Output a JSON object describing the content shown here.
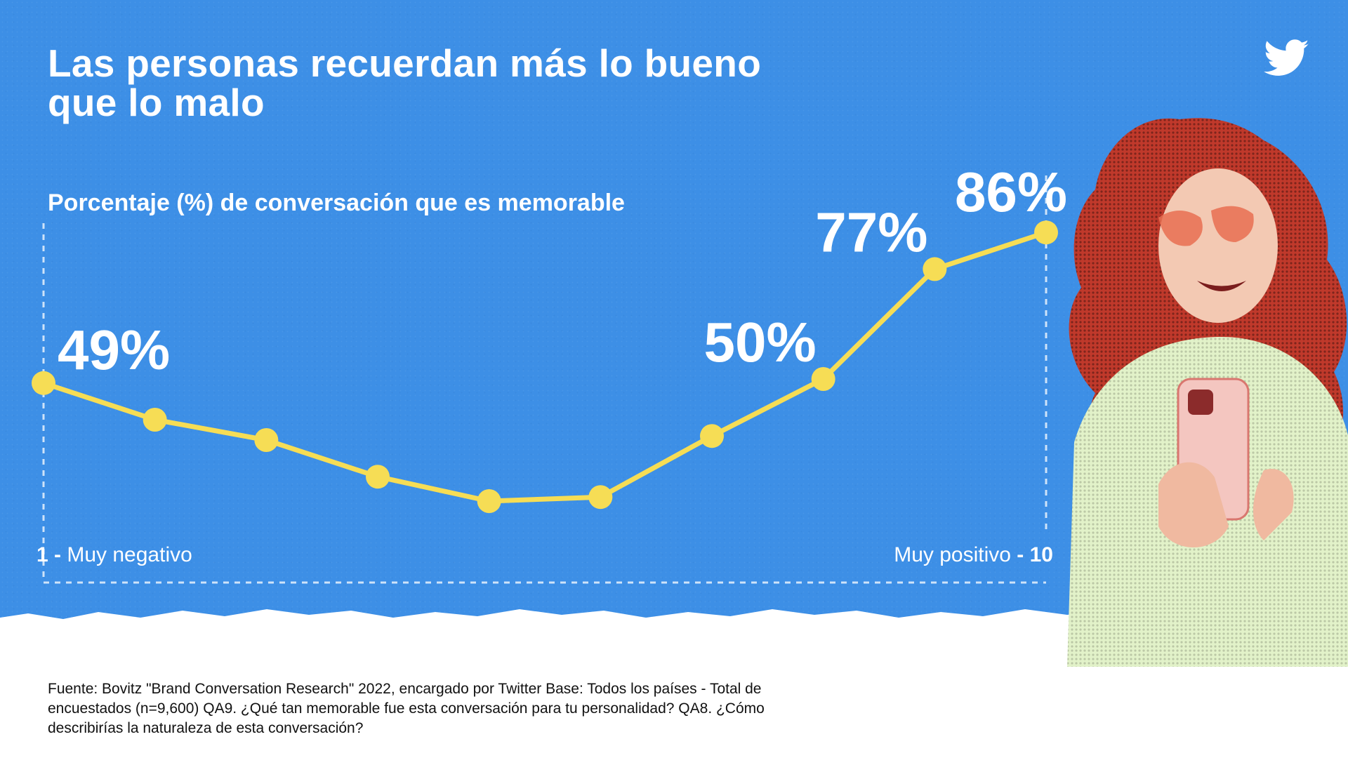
{
  "title": {
    "line1": "Las personas recuerdan más lo bueno",
    "line2": "que lo malo"
  },
  "subtitle": "Porcentaje (%) de conversación que es memorable",
  "colors": {
    "background": "#3d8fe6",
    "line": "#f6dd55",
    "text": "#ffffff",
    "footer": "#ffffff"
  },
  "brand_icon": "twitter-bird-icon",
  "chart_data": {
    "type": "line",
    "title": "Porcentaje (%) de conversación que es memorable",
    "x_start_label": {
      "number": "1",
      "text": "Muy negativo"
    },
    "x_end_label": {
      "number": "10",
      "text": "Muy positivo"
    },
    "x": [
      1,
      2,
      3,
      4,
      5,
      6,
      7,
      8,
      9,
      10
    ],
    "values": [
      49,
      40,
      35,
      26,
      20,
      21,
      36,
      50,
      77,
      86
    ],
    "ylim": [
      0,
      100
    ],
    "grid": false,
    "data_labels": [
      {
        "index": 0,
        "text": "49%"
      },
      {
        "index": 7,
        "text": "50%"
      },
      {
        "index": 8,
        "text": "77%"
      },
      {
        "index": 9,
        "text": "86%"
      }
    ]
  },
  "source": "Fuente: Bovitz \"Brand Conversation Research\" 2022, encargado por Twitter Base: Todos los países - Total de encuestados (n=9,600) QA9. ¿Qué tan memorable fue esta conversación para tu personalidad? QA8. ¿Cómo describirías la naturaleza de esta conversación?"
}
